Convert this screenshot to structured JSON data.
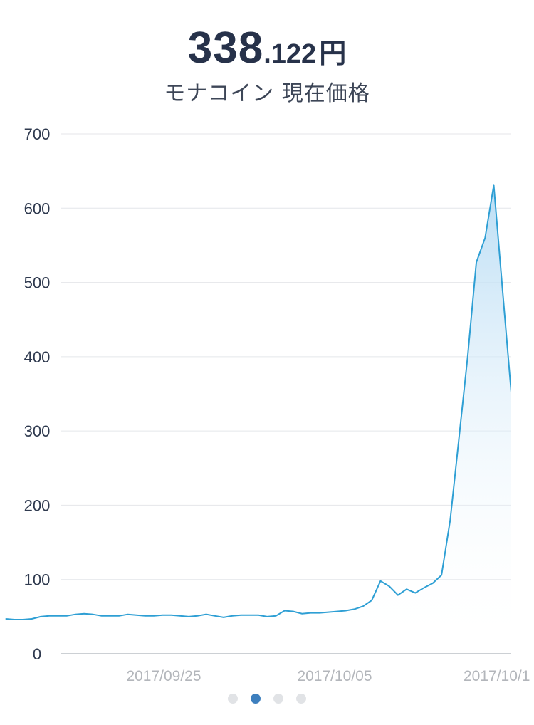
{
  "header": {
    "price_integer": "338",
    "price_decimal": ".122",
    "price_unit": "円",
    "subtitle": "モナコイン 現在価格"
  },
  "pager": {
    "count": 4,
    "active_index": 1
  },
  "colors": {
    "line": "#2e9fd4",
    "fill_top": "#b8dcf4",
    "grid": "#e4e6ea",
    "axis_label": "#2f3a4f",
    "date_label": "#b3b6bb",
    "dot_active": "#3d7fbe",
    "dot_inactive": "#e1e3e6"
  },
  "chart_data": {
    "type": "area",
    "title": "",
    "xlabel": "",
    "ylabel": "",
    "ylim": [
      0,
      700
    ],
    "yticks": [
      0,
      100,
      200,
      300,
      400,
      500,
      600,
      700
    ],
    "xtick_labels": [
      "2017/09/25",
      "2017/10/05",
      "2017/10/1"
    ],
    "grid": true,
    "series": [
      {
        "values": [
          47,
          46,
          46,
          47,
          50,
          51,
          51,
          51,
          53,
          54,
          53,
          51,
          51,
          51,
          53,
          52,
          51,
          51,
          52,
          52,
          51,
          50,
          51,
          53,
          51,
          49,
          51,
          52,
          52,
          52,
          50,
          51,
          58,
          57,
          54,
          55,
          55,
          56,
          57,
          58,
          60,
          64,
          72,
          98,
          91,
          79,
          87,
          82,
          89,
          95,
          106,
          180,
          290,
          400,
          527,
          560,
          631,
          490,
          352
        ]
      }
    ]
  }
}
